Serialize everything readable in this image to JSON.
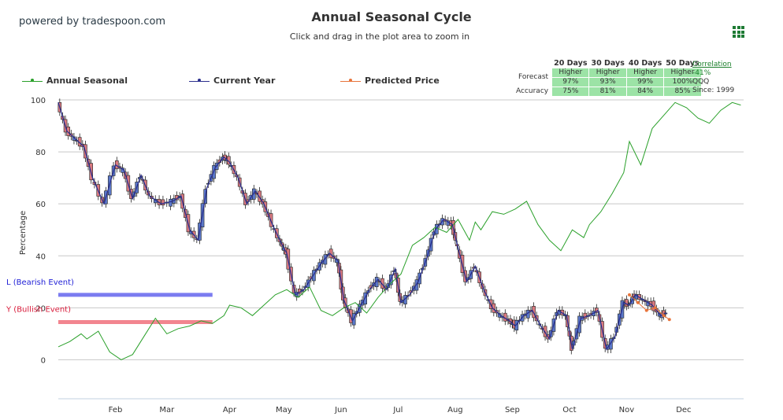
{
  "header": {
    "powered_by": "powered by tradespoon.com",
    "title": "Annual Seasonal Cycle",
    "subtitle": "Click and drag in the plot area to zoom in"
  },
  "legend": [
    {
      "label": "Annual Seasonal",
      "color": "#2aa02a"
    },
    {
      "label": "Current Year",
      "color": "#2b2f8e"
    },
    {
      "label": "Predicted Price",
      "color": "#e8743b"
    }
  ],
  "forecast_table": {
    "headers": [
      "20 Days",
      "30 Days",
      "40 Days",
      "50 Days"
    ],
    "forecast_label": "Forecast",
    "accuracy_label": "Accuracy",
    "direction": [
      "Higher",
      "Higher",
      "Higher",
      "Higher"
    ],
    "probability": [
      "97%",
      "93%",
      "99%",
      "100%"
    ],
    "accuracy": [
      "75%",
      "81%",
      "84%",
      "85%"
    ]
  },
  "correlation": {
    "label": "Correlation",
    "value": "-41%",
    "symbol": "QQQ",
    "since": "Since: 1999"
  },
  "events": [
    {
      "label": "L (Bearish Event)",
      "color": "#1f1fd6",
      "bar_color": "#7b7cf0",
      "value": 25,
      "x_start": 0,
      "x_end": 2.7
    },
    {
      "label": "Y (Bullish Event)",
      "color": "#d81b3a",
      "bar_color": "#f2858f",
      "value": 14.5,
      "x_start": 0,
      "x_end": 2.7
    }
  ],
  "colors": {
    "seasonal": "#2aa02a",
    "current": "#2b2f8e",
    "predicted": "#e8743b",
    "up_candle": "#5b78c8",
    "down_candle": "#d97a80"
  },
  "chart_data": {
    "type": "line",
    "title": "Annual Seasonal Cycle",
    "ylabel": "Percentage",
    "xlabel": "",
    "ylim": [
      -15,
      100
    ],
    "yticks": [
      "100",
      "80",
      "60",
      "40",
      "20",
      "0"
    ],
    "ytick_values": [
      100,
      80,
      60,
      40,
      20,
      0
    ],
    "xlim": [
      0,
      12
    ],
    "categories": [
      "Feb",
      "Mar",
      "Apr",
      "May",
      "Jun",
      "Jul",
      "Aug",
      "Sep",
      "Oct",
      "Nov",
      "Dec"
    ],
    "category_positions": [
      1,
      1.9,
      3,
      3.95,
      4.95,
      5.95,
      6.95,
      7.95,
      8.95,
      9.95,
      10.95
    ],
    "grid": true,
    "legend_position": "top-left",
    "series": [
      {
        "name": "Annual Seasonal",
        "x": [
          0,
          0.2,
          0.4,
          0.5,
          0.7,
          0.9,
          1.1,
          1.3,
          1.5,
          1.7,
          1.9,
          2.1,
          2.3,
          2.5,
          2.7,
          2.9,
          3.0,
          3.2,
          3.4,
          3.6,
          3.8,
          4.0,
          4.2,
          4.4,
          4.6,
          4.8,
          5.0,
          5.2,
          5.4,
          5.6,
          5.8,
          6.0,
          6.2,
          6.4,
          6.6,
          6.8,
          7.0,
          7.2,
          7.3,
          7.4,
          7.6,
          7.8,
          8.0,
          8.2,
          8.4,
          8.6,
          8.8,
          9.0,
          9.2,
          9.3,
          9.5,
          9.7,
          9.9,
          10.0,
          10.2,
          10.4,
          10.6,
          10.8,
          11.0,
          11.2,
          11.4,
          11.6,
          11.8,
          11.95
        ],
        "values": [
          5,
          7,
          10,
          8,
          11,
          3,
          0,
          2,
          9,
          16,
          10,
          12,
          13,
          15,
          14,
          17,
          21,
          20,
          17,
          21,
          25,
          27,
          24,
          28,
          19,
          17,
          20,
          22,
          18,
          24,
          29,
          33,
          44,
          47,
          51,
          49,
          54,
          46,
          53,
          50,
          57,
          56,
          58,
          61,
          52,
          46,
          42,
          50,
          47,
          52,
          57,
          64,
          72,
          84,
          75,
          89,
          94,
          99,
          97,
          93,
          91,
          96,
          99,
          98
        ]
      },
      {
        "name": "Current Year",
        "x": [
          0,
          0.15,
          0.3,
          0.45,
          0.6,
          0.8,
          1.0,
          1.15,
          1.3,
          1.45,
          1.6,
          1.8,
          2.0,
          2.15,
          2.3,
          2.45,
          2.6,
          2.75,
          2.9,
          3.0,
          3.15,
          3.3,
          3.45,
          3.6,
          3.75,
          3.9,
          4.0,
          4.15,
          4.3,
          4.45,
          4.6,
          4.75,
          4.9,
          5.0,
          5.15,
          5.3,
          5.45,
          5.6,
          5.75,
          5.9,
          6.0,
          6.15,
          6.3,
          6.45,
          6.6,
          6.75,
          6.9,
          7.0,
          7.15,
          7.3,
          7.45,
          7.6,
          7.75,
          7.9,
          8.0,
          8.15,
          8.3,
          8.45,
          8.6,
          8.75,
          8.9,
          9.0,
          9.15,
          9.3,
          9.45,
          9.6,
          9.75,
          9.9,
          10.0,
          10.1,
          10.25,
          10.4,
          10.55,
          10.65
        ],
        "values": [
          99,
          88,
          85,
          82,
          70,
          60,
          75,
          73,
          62,
          71,
          63,
          60,
          61,
          63,
          50,
          46,
          66,
          74,
          78,
          76,
          70,
          60,
          65,
          60,
          52,
          45,
          41,
          25,
          27,
          32,
          37,
          41,
          38,
          23,
          15,
          21,
          27,
          31,
          27,
          35,
          22,
          25,
          30,
          39,
          50,
          54,
          52,
          43,
          30,
          36,
          27,
          20,
          17,
          15,
          13,
          17,
          19,
          13,
          8,
          19,
          17,
          4,
          16,
          17,
          19,
          4,
          9,
          22,
          21,
          25,
          23,
          21,
          17,
          18
        ]
      },
      {
        "name": "Predicted Price",
        "x": [
          10.0,
          10.15,
          10.3,
          10.45,
          10.6,
          10.7
        ],
        "values": [
          25,
          22,
          19,
          20,
          17,
          15.5
        ]
      }
    ]
  }
}
